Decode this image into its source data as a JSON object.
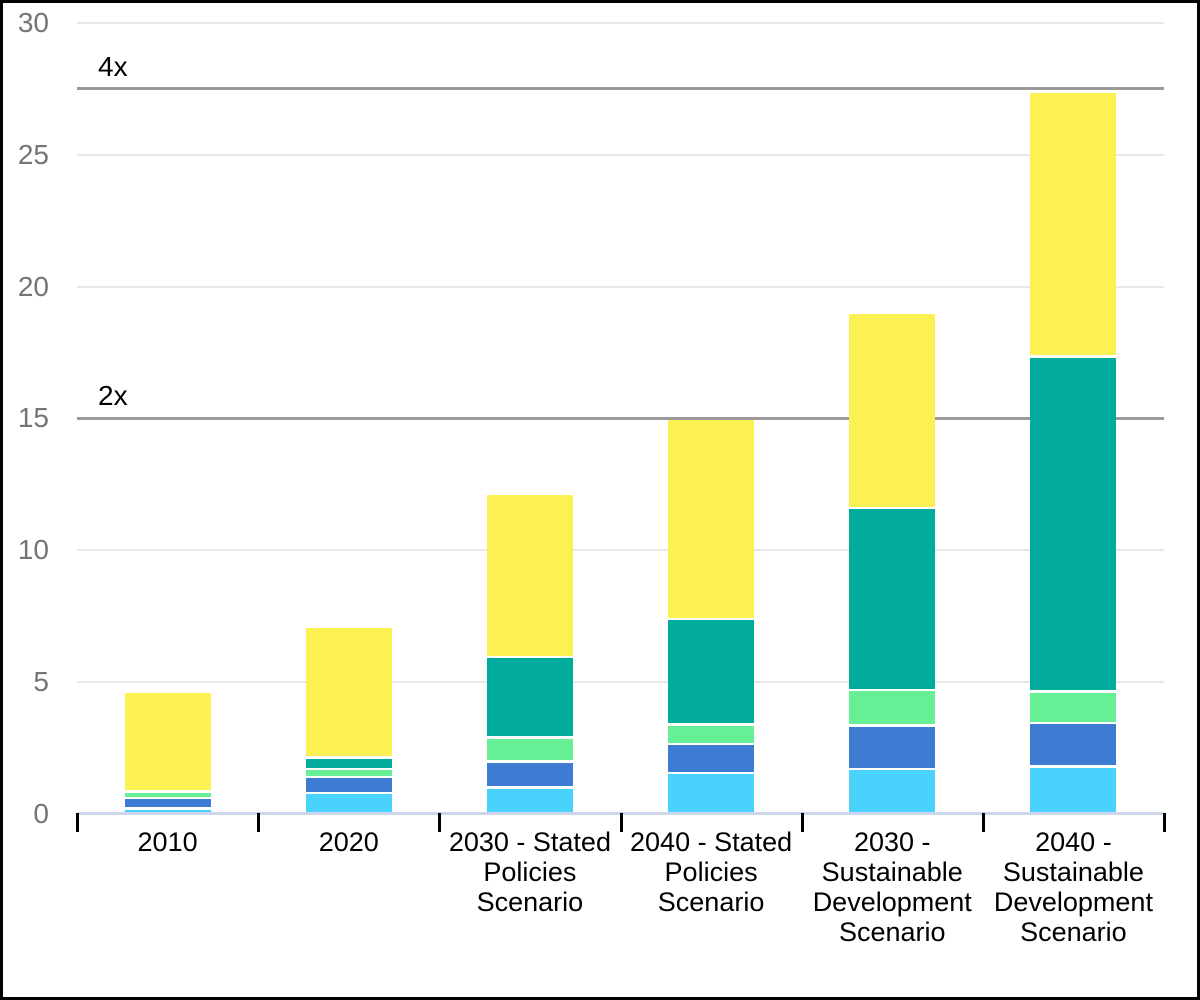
{
  "chart_data": {
    "type": "bar",
    "stacked": true,
    "title": "",
    "legend_position": "none",
    "grid": true,
    "categories": [
      "2010",
      "2020",
      "2030 - Stated Policies Scenario",
      "2040 - Stated Policies Scenario",
      "2030 - Sustainable Development Scenario",
      "2040 - Sustainable Development Scenario"
    ],
    "category_label_lines": [
      [
        "2010"
      ],
      [
        "2020"
      ],
      [
        "2030 - Stated",
        "Policies",
        "Scenario"
      ],
      [
        "2040 - Stated",
        "Policies",
        "Scenario"
      ],
      [
        "2030 -",
        "Sustainable",
        "Development",
        "Scenario"
      ],
      [
        "2040 -",
        "Sustainable",
        "Development",
        "Scenario"
      ]
    ],
    "series": [
      {
        "name": "light-blue",
        "color": "#49d2fc",
        "values": [
          0.2,
          0.8,
          1.0,
          1.55,
          1.7,
          1.8
        ]
      },
      {
        "name": "blue",
        "color": "#3e7bd3",
        "values": [
          0.4,
          0.6,
          1.0,
          1.1,
          1.65,
          1.65
        ]
      },
      {
        "name": "green",
        "color": "#66ef95",
        "values": [
          0.25,
          0.3,
          0.9,
          0.75,
          1.35,
          1.2
        ]
      },
      {
        "name": "teal",
        "color": "#02ac9d",
        "values": [
          0.0,
          0.45,
          3.05,
          4.0,
          6.9,
          12.7
        ]
      },
      {
        "name": "yellow",
        "color": "#fdf053",
        "values": [
          3.75,
          4.9,
          6.15,
          7.55,
          7.35,
          10.0
        ]
      }
    ],
    "totals": [
      4.6,
      7.05,
      12.1,
      14.95,
      18.95,
      27.35
    ],
    "yticks": [
      0,
      5,
      10,
      15,
      20,
      25,
      30
    ],
    "ylim": [
      0,
      30
    ],
    "xlabel": "",
    "ylabel": "",
    "reference_lines": [
      {
        "label": "2x",
        "value": 15.0
      },
      {
        "label": "4x",
        "value": 27.5
      }
    ]
  },
  "colors": {
    "background": "#ffffff",
    "frame_border": "#000000",
    "gridline": "#e7e7e7",
    "reference_line": "#9a9a9a",
    "axis_line": "#ccd5ea",
    "axis_tick": "#000000",
    "y_label_text": "#757575",
    "x_label_text": "#000000"
  }
}
